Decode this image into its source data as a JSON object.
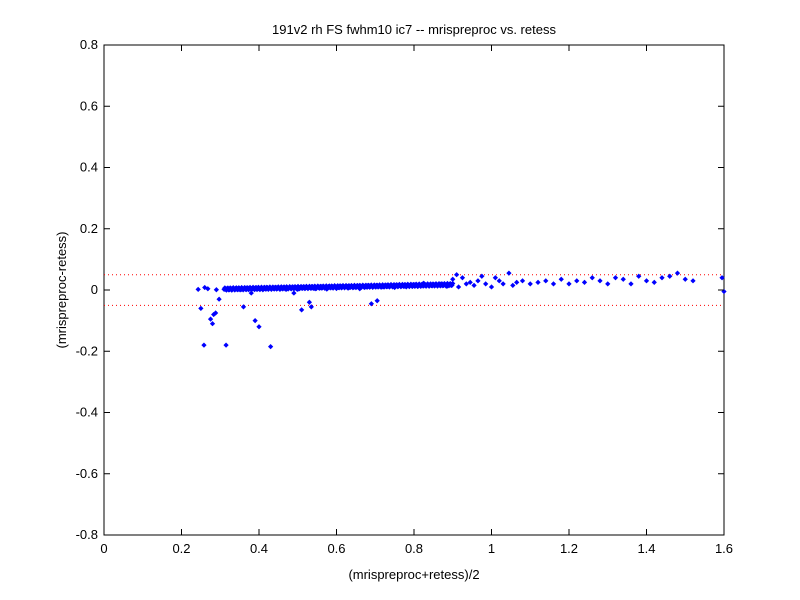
{
  "chart_data": {
    "type": "scatter",
    "title": "191v2 rh FS fwhm10 ic7 -- mrispreproc vs. retess",
    "xlabel": "(mrispreproc+retess)/2",
    "ylabel": "(mrispreproc-retess)",
    "xlim": [
      0,
      1.6
    ],
    "ylim": [
      -0.8,
      0.8
    ],
    "xticks": [
      0,
      0.2,
      0.4,
      0.6,
      0.8,
      1,
      1.2,
      1.4,
      1.6
    ],
    "xtick_labels": [
      "0",
      "0.2",
      "0.4",
      "0.6",
      "0.8",
      "1",
      "1.2",
      "1.4",
      "1.6"
    ],
    "yticks": [
      -0.8,
      -0.6,
      -0.4,
      -0.2,
      0,
      0.2,
      0.4,
      0.6,
      0.8
    ],
    "ytick_labels": [
      "-0.8",
      "-0.6",
      "-0.4",
      "-0.2",
      "0",
      "0.2",
      "0.4",
      "0.6",
      "0.8"
    ],
    "grid": false,
    "marker_color": "#0000ff",
    "reference_lines": [
      {
        "y": 0.05,
        "style": "dotted",
        "color": "#ff0000"
      },
      {
        "y": -0.05,
        "style": "dotted",
        "color": "#ff0000"
      }
    ],
    "points": [
      [
        0.243,
        0.002
      ],
      [
        0.25,
        -0.06
      ],
      [
        0.258,
        -0.18
      ],
      [
        0.26,
        0.008
      ],
      [
        0.268,
        0.004
      ],
      [
        0.275,
        -0.095
      ],
      [
        0.28,
        -0.11
      ],
      [
        0.283,
        -0.08
      ],
      [
        0.288,
        -0.075
      ],
      [
        0.29,
        0.001
      ],
      [
        0.297,
        -0.03
      ],
      [
        0.31,
        0.002
      ],
      [
        0.315,
        -0.18
      ],
      [
        0.32,
        0.003
      ],
      [
        0.33,
        0.0
      ],
      [
        0.34,
        0.004
      ],
      [
        0.355,
        0.002
      ],
      [
        0.36,
        -0.055
      ],
      [
        0.37,
        0.005
      ],
      [
        0.38,
        -0.01
      ],
      [
        0.39,
        -0.1
      ],
      [
        0.395,
        0.003
      ],
      [
        0.4,
        -0.12
      ],
      [
        0.41,
        0.001
      ],
      [
        0.425,
        0.004
      ],
      [
        0.43,
        -0.185
      ],
      [
        0.44,
        0.006
      ],
      [
        0.455,
        0.003
      ],
      [
        0.47,
        0.002
      ],
      [
        0.48,
        0.008
      ],
      [
        0.49,
        -0.01
      ],
      [
        0.5,
        0.002
      ],
      [
        0.51,
        -0.065
      ],
      [
        0.52,
        0.006
      ],
      [
        0.53,
        -0.04
      ],
      [
        0.535,
        -0.055
      ],
      [
        0.545,
        0.004
      ],
      [
        0.56,
        0.007
      ],
      [
        0.575,
        0.003
      ],
      [
        0.59,
        0.008
      ],
      [
        0.6,
        0.005
      ],
      [
        0.615,
        0.01
      ],
      [
        0.63,
        0.006
      ],
      [
        0.645,
        0.009
      ],
      [
        0.66,
        0.004
      ],
      [
        0.675,
        0.01
      ],
      [
        0.69,
        -0.045
      ],
      [
        0.705,
        -0.035
      ],
      [
        0.72,
        0.01
      ],
      [
        0.735,
        0.012
      ],
      [
        0.75,
        0.008
      ],
      [
        0.765,
        0.013
      ],
      [
        0.78,
        0.01
      ],
      [
        0.795,
        0.015
      ],
      [
        0.81,
        0.012
      ],
      [
        0.825,
        0.022
      ],
      [
        0.84,
        0.015
      ],
      [
        0.855,
        0.018
      ],
      [
        0.87,
        0.02
      ],
      [
        0.885,
        0.012
      ],
      [
        0.9,
        0.035
      ],
      [
        0.91,
        0.05
      ],
      [
        0.915,
        0.01
      ],
      [
        0.925,
        0.04
      ],
      [
        0.935,
        0.02
      ],
      [
        0.945,
        0.025
      ],
      [
        0.955,
        0.015
      ],
      [
        0.965,
        0.03
      ],
      [
        0.975,
        0.045
      ],
      [
        0.985,
        0.02
      ],
      [
        1.0,
        0.01
      ],
      [
        1.01,
        0.04
      ],
      [
        1.02,
        0.03
      ],
      [
        1.03,
        0.02
      ],
      [
        1.045,
        0.055
      ],
      [
        1.055,
        0.015
      ],
      [
        1.065,
        0.025
      ],
      [
        1.08,
        0.03
      ],
      [
        1.1,
        0.02
      ],
      [
        1.12,
        0.025
      ],
      [
        1.14,
        0.03
      ],
      [
        1.16,
        0.02
      ],
      [
        1.18,
        0.035
      ],
      [
        1.2,
        0.02
      ],
      [
        1.22,
        0.03
      ],
      [
        1.24,
        0.025
      ],
      [
        1.26,
        0.04
      ],
      [
        1.28,
        0.03
      ],
      [
        1.3,
        0.02
      ],
      [
        1.32,
        0.04
      ],
      [
        1.34,
        0.035
      ],
      [
        1.36,
        0.02
      ],
      [
        1.38,
        0.045
      ],
      [
        1.4,
        0.03
      ],
      [
        1.42,
        0.025
      ],
      [
        1.44,
        0.04
      ],
      [
        1.46,
        0.045
      ],
      [
        1.48,
        0.055
      ],
      [
        1.5,
        0.035
      ],
      [
        1.52,
        0.03
      ],
      [
        1.595,
        0.04
      ],
      [
        1.6,
        -0.005
      ]
    ]
  }
}
